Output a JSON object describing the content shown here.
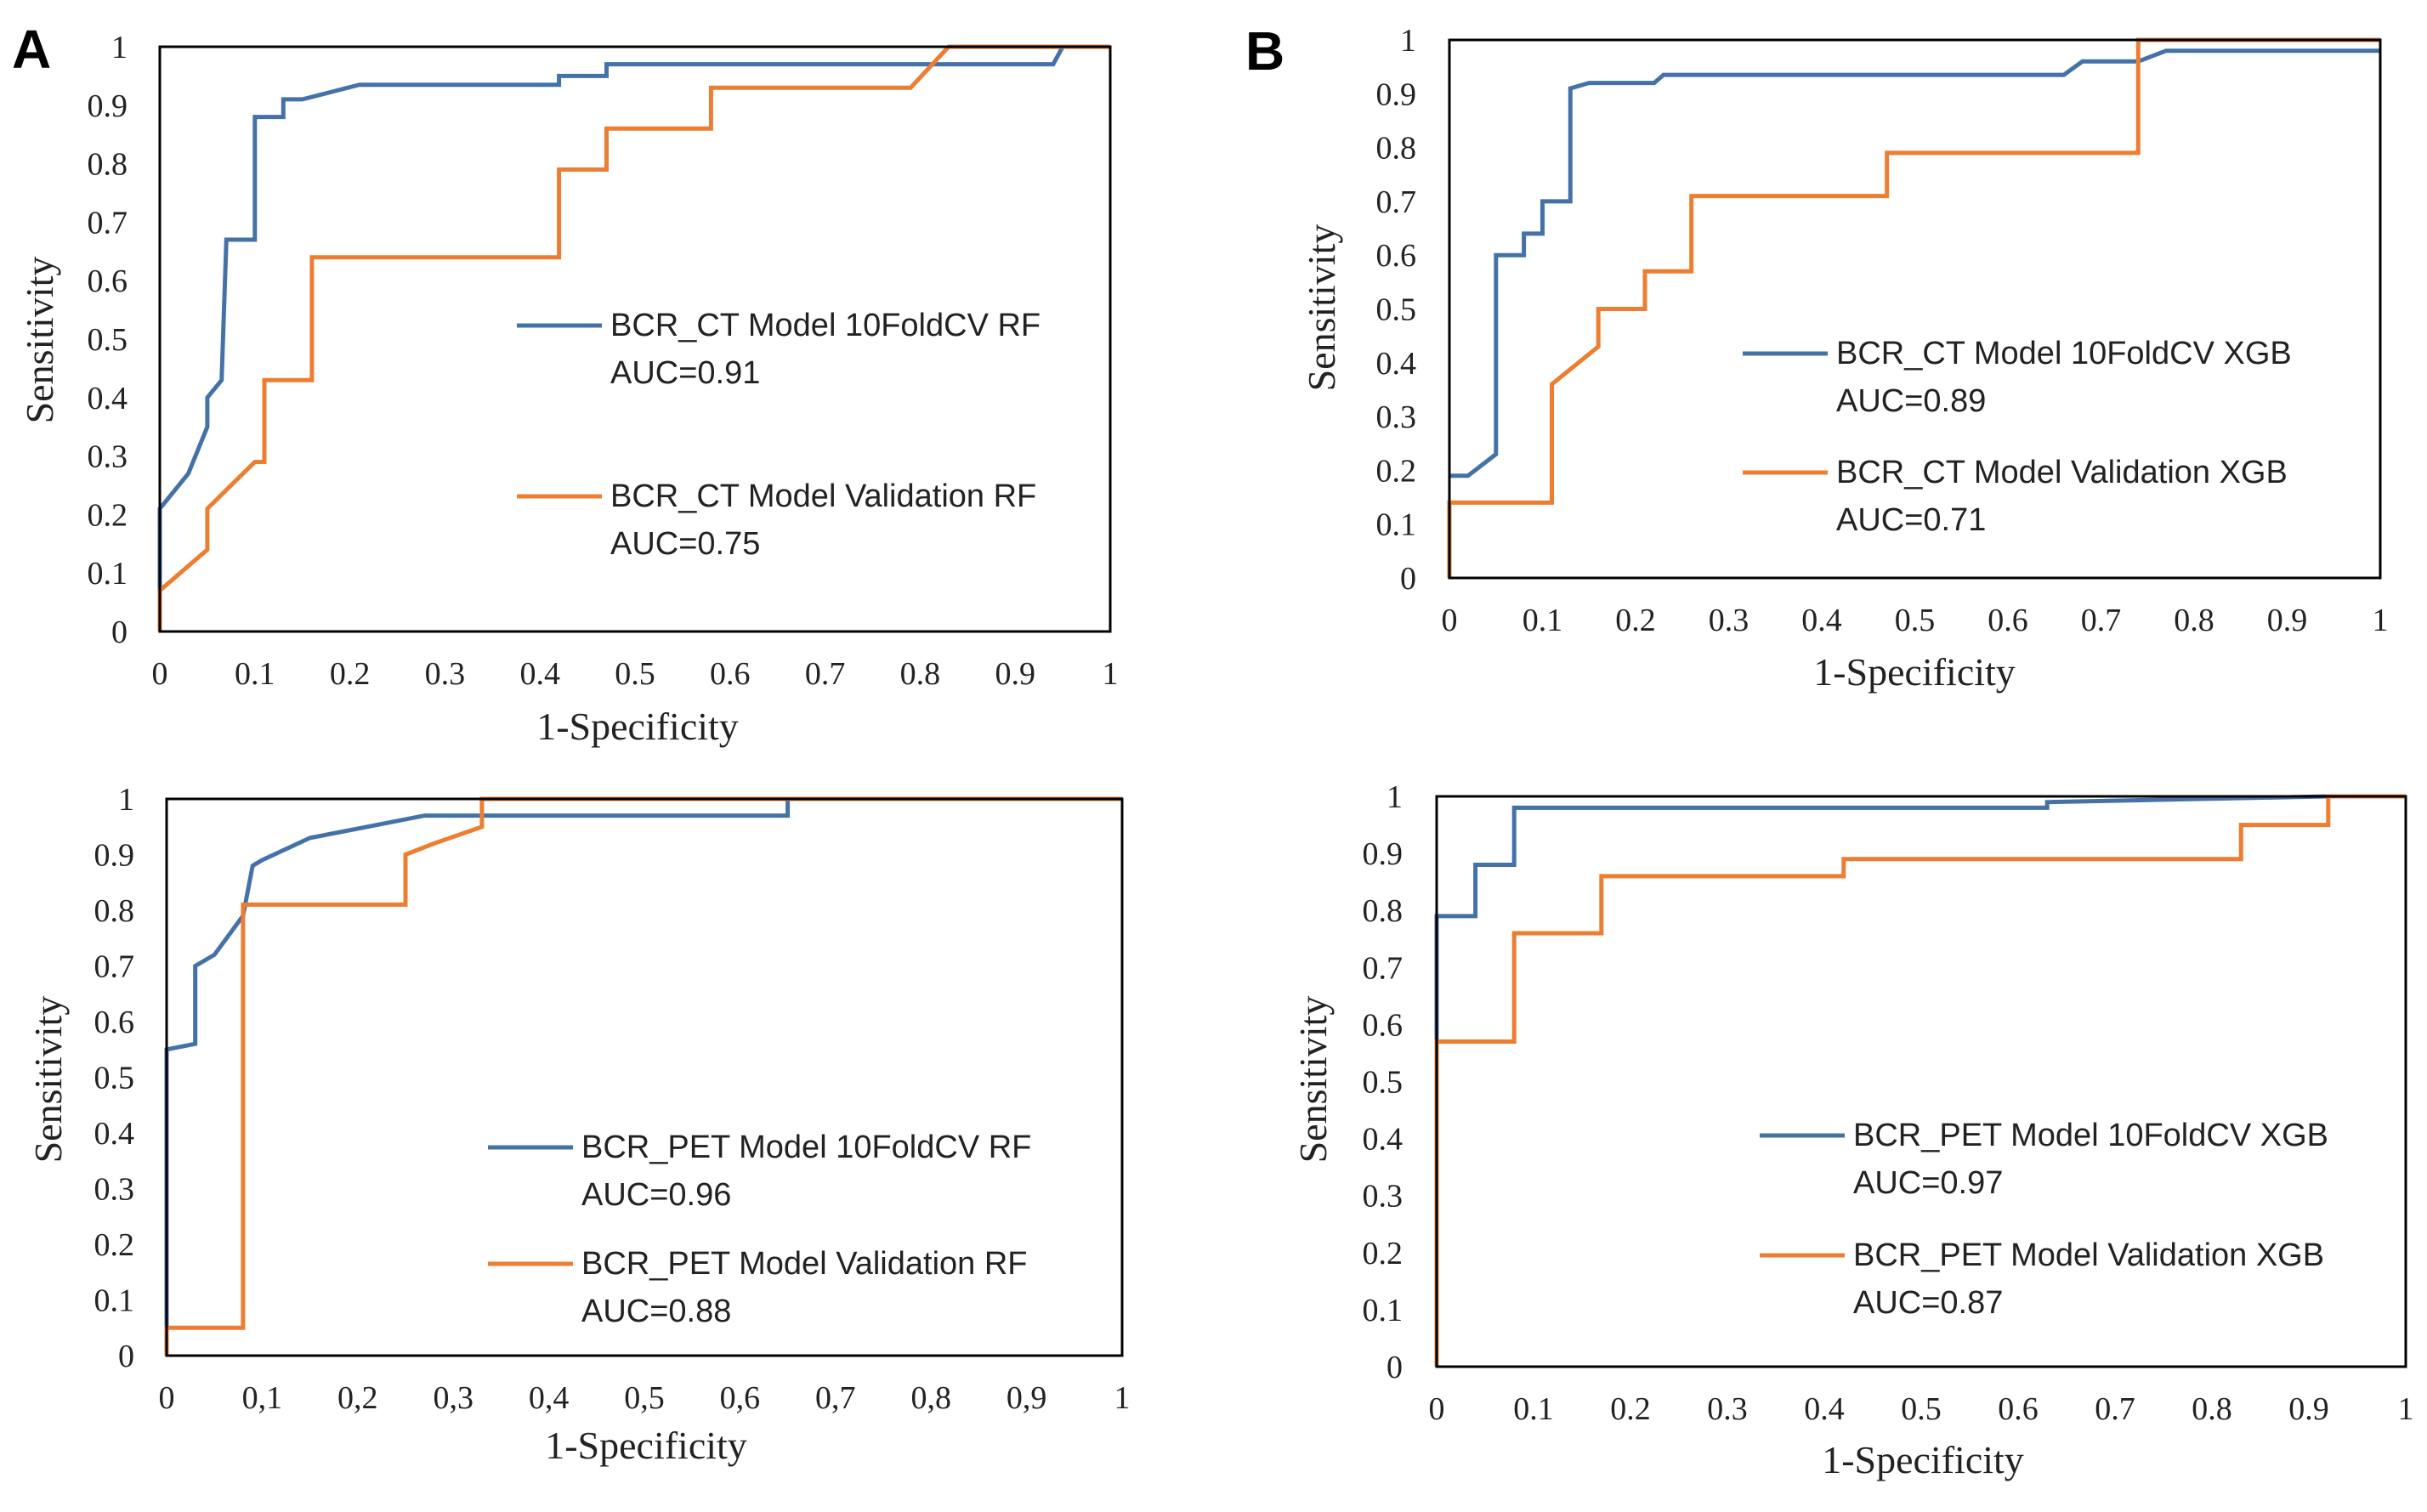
{
  "panel_labels": [
    "A",
    "B"
  ],
  "colors": {
    "series1": "#4472A8",
    "series2": "#ED7D31"
  },
  "chart_data": [
    {
      "type": "line",
      "xlabel": "1-Specificity",
      "ylabel": "Sensitivity",
      "xlim": [
        0,
        1
      ],
      "ylim": [
        0,
        1
      ],
      "x_ticks": [
        "0",
        "0.1",
        "0.2",
        "0.3",
        "0.4",
        "0.5",
        "0.6",
        "0.7",
        "0.8",
        "0.9",
        "1"
      ],
      "y_ticks": [
        "0",
        "0.1",
        "0.2",
        "0.3",
        "0.4",
        "0.5",
        "0.6",
        "0.7",
        "0.8",
        "0.9",
        "1"
      ],
      "series": [
        {
          "name": "BCR_CT Model 10FoldCV RF",
          "auc": "AUC=0.91",
          "points": [
            [
              0,
              0
            ],
            [
              0,
              0.21
            ],
            [
              0.03,
              0.27
            ],
            [
              0.05,
              0.35
            ],
            [
              0.05,
              0.4
            ],
            [
              0.065,
              0.43
            ],
            [
              0.07,
              0.67
            ],
            [
              0.1,
              0.67
            ],
            [
              0.1,
              0.88
            ],
            [
              0.13,
              0.88
            ],
            [
              0.13,
              0.91
            ],
            [
              0.15,
              0.91
            ],
            [
              0.21,
              0.935
            ],
            [
              0.42,
              0.935
            ],
            [
              0.42,
              0.95
            ],
            [
              0.47,
              0.95
            ],
            [
              0.47,
              0.97
            ],
            [
              0.8,
              0.97
            ],
            [
              0.8,
              0.97
            ],
            [
              0.94,
              0.97
            ],
            [
              0.95,
              1
            ],
            [
              1,
              1
            ]
          ]
        },
        {
          "name": "BCR_CT Model Validation RF",
          "auc": "AUC=0.75",
          "points": [
            [
              0,
              0
            ],
            [
              0,
              0.07
            ],
            [
              0.05,
              0.14
            ],
            [
              0.05,
              0.21
            ],
            [
              0.1,
              0.29
            ],
            [
              0.11,
              0.29
            ],
            [
              0.11,
              0.43
            ],
            [
              0.16,
              0.43
            ],
            [
              0.16,
              0.64
            ],
            [
              0.42,
              0.64
            ],
            [
              0.42,
              0.79
            ],
            [
              0.47,
              0.79
            ],
            [
              0.47,
              0.86
            ],
            [
              0.58,
              0.86
            ],
            [
              0.58,
              0.93
            ],
            [
              0.79,
              0.93
            ],
            [
              0.83,
              1
            ],
            [
              1,
              1
            ]
          ]
        }
      ]
    },
    {
      "type": "line",
      "xlabel": "1-Specificity",
      "ylabel": "Sensitivity",
      "xlim": [
        0,
        1
      ],
      "ylim": [
        0,
        1
      ],
      "x_ticks": [
        "0",
        "0.1",
        "0.2",
        "0.3",
        "0.4",
        "0.5",
        "0.6",
        "0.7",
        "0.8",
        "0.9",
        "1"
      ],
      "y_ticks": [
        "0",
        "0.1",
        "0.2",
        "0.3",
        "0.4",
        "0.5",
        "0.6",
        "0.7",
        "0.8",
        "0.9",
        "1"
      ],
      "series": [
        {
          "name": "BCR_CT Model 10FoldCV XGB",
          "auc": "AUC=0.89",
          "points": [
            [
              0,
              0.19
            ],
            [
              0.02,
              0.19
            ],
            [
              0.05,
              0.23
            ],
            [
              0.05,
              0.6
            ],
            [
              0.08,
              0.6
            ],
            [
              0.08,
              0.64
            ],
            [
              0.1,
              0.64
            ],
            [
              0.1,
              0.7
            ],
            [
              0.13,
              0.7
            ],
            [
              0.13,
              0.91
            ],
            [
              0.15,
              0.92
            ],
            [
              0.22,
              0.92
            ],
            [
              0.23,
              0.935
            ],
            [
              0.66,
              0.935
            ],
            [
              0.68,
              0.96
            ],
            [
              0.74,
              0.96
            ],
            [
              0.77,
              0.98
            ],
            [
              1,
              0.98
            ]
          ]
        },
        {
          "name": "BCR_CT Model Validation  XGB",
          "auc": "AUC=0.71",
          "points": [
            [
              0,
              0
            ],
            [
              0,
              0.14
            ],
            [
              0.11,
              0.14
            ],
            [
              0.11,
              0.36
            ],
            [
              0.16,
              0.43
            ],
            [
              0.16,
              0.5
            ],
            [
              0.21,
              0.5
            ],
            [
              0.21,
              0.57
            ],
            [
              0.26,
              0.57
            ],
            [
              0.26,
              0.71
            ],
            [
              0.47,
              0.71
            ],
            [
              0.47,
              0.79
            ],
            [
              0.74,
              0.79
            ],
            [
              0.74,
              1
            ],
            [
              1,
              1
            ]
          ]
        }
      ]
    },
    {
      "type": "line",
      "xlabel": "1-Specificity",
      "ylabel": "Sensitivity",
      "xlim": [
        0,
        1
      ],
      "ylim": [
        0,
        1
      ],
      "x_ticks": [
        "0",
        "0,1",
        "0,2",
        "0,3",
        "0,4",
        "0,5",
        "0,6",
        "0,7",
        "0,8",
        "0,9",
        "1"
      ],
      "y_ticks": [
        "0",
        "0.1",
        "0.2",
        "0.3",
        "0.4",
        "0.5",
        "0.6",
        "0.7",
        "0.8",
        "0.9",
        "1"
      ],
      "series": [
        {
          "name": "BCR_PET Model 10FoldCV RF",
          "auc": "AUC=0.96",
          "points": [
            [
              0,
              0
            ],
            [
              0,
              0.55
            ],
            [
              0.03,
              0.56
            ],
            [
              0.03,
              0.7
            ],
            [
              0.05,
              0.72
            ],
            [
              0.08,
              0.79
            ],
            [
              0.09,
              0.88
            ],
            [
              0.1,
              0.89
            ],
            [
              0.15,
              0.93
            ],
            [
              0.21,
              0.95
            ],
            [
              0.27,
              0.97
            ],
            [
              0.65,
              0.97
            ],
            [
              0.65,
              1
            ],
            [
              1,
              1
            ]
          ]
        },
        {
          "name": "BCR_PET Model Validation RF",
          "auc": "AUC=0.88",
          "points": [
            [
              0,
              0
            ],
            [
              0,
              0.05
            ],
            [
              0.08,
              0.05
            ],
            [
              0.08,
              0.81
            ],
            [
              0.25,
              0.81
            ],
            [
              0.25,
              0.9
            ],
            [
              0.28,
              0.92
            ],
            [
              0.33,
              0.95
            ],
            [
              0.33,
              1
            ],
            [
              1,
              1
            ]
          ]
        }
      ]
    },
    {
      "type": "line",
      "xlabel": "1-Specificity",
      "ylabel": "Sensitivity",
      "xlim": [
        0,
        1
      ],
      "ylim": [
        0,
        1
      ],
      "x_ticks": [
        "0",
        "0.1",
        "0.2",
        "0.3",
        "0.4",
        "0.5",
        "0.6",
        "0.7",
        "0.8",
        "0.9",
        "1"
      ],
      "y_ticks": [
        "0",
        "0.1",
        "0.2",
        "0.3",
        "0.4",
        "0.5",
        "0.6",
        "0.7",
        "0.8",
        "0.9",
        "1"
      ],
      "series": [
        {
          "name": "BCR_PET Model 10FoldCV XGB",
          "auc": "AUC=0.97",
          "points": [
            [
              0,
              0
            ],
            [
              0,
              0.79
            ],
            [
              0.04,
              0.79
            ],
            [
              0.04,
              0.88
            ],
            [
              0.08,
              0.88
            ],
            [
              0.08,
              0.98
            ],
            [
              0.63,
              0.98
            ],
            [
              0.63,
              0.99
            ],
            [
              0.92,
              1
            ],
            [
              1,
              1
            ]
          ]
        },
        {
          "name": "BCR_PET Model Validation  XGB",
          "auc": "AUC=0.87",
          "points": [
            [
              0,
              0
            ],
            [
              0,
              0.57
            ],
            [
              0.08,
              0.57
            ],
            [
              0.08,
              0.76
            ],
            [
              0.17,
              0.76
            ],
            [
              0.17,
              0.86
            ],
            [
              0.42,
              0.86
            ],
            [
              0.42,
              0.89
            ],
            [
              0.83,
              0.89
            ],
            [
              0.83,
              0.95
            ],
            [
              0.92,
              0.95
            ],
            [
              0.92,
              1
            ],
            [
              1,
              1
            ]
          ]
        }
      ]
    }
  ]
}
